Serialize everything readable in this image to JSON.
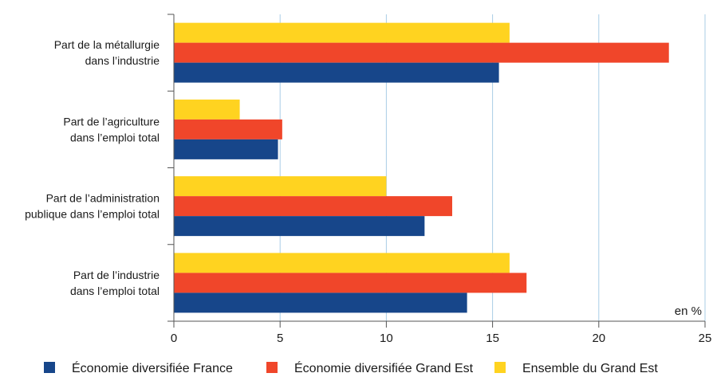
{
  "chart_data": {
    "type": "bar",
    "orientation": "horizontal",
    "categories": [
      [
        "Part de la métallurgie",
        "dans l’industrie"
      ],
      [
        "Part de l’agriculture",
        "dans l’emploi total"
      ],
      [
        "Part de l’administration",
        "publique dans l’emploi total"
      ],
      [
        "Part de l’industrie",
        "dans l’emploi total"
      ]
    ],
    "series": [
      {
        "name": "Ensemble du Grand Est",
        "color": "#ffd320",
        "values": [
          15.8,
          3.1,
          10.0,
          15.8
        ]
      },
      {
        "name": "Économie diversifiée Grand Est",
        "color": "#f0462a",
        "values": [
          23.3,
          5.1,
          13.1,
          16.6
        ]
      },
      {
        "name": "Économie diversifiée France",
        "color": "#17468a",
        "values": [
          15.3,
          4.9,
          11.8,
          13.8
        ]
      }
    ],
    "legend_order": [
      "Économie diversifiée France",
      "Économie diversifiée Grand Est",
      "Ensemble du Grand Est"
    ],
    "xlim": [
      0,
      25
    ],
    "xticks": [
      0,
      5,
      10,
      15,
      20,
      25
    ],
    "unit_label": "en %",
    "grid": true,
    "grid_color": "#a9cde6",
    "legend_position": "bottom"
  }
}
